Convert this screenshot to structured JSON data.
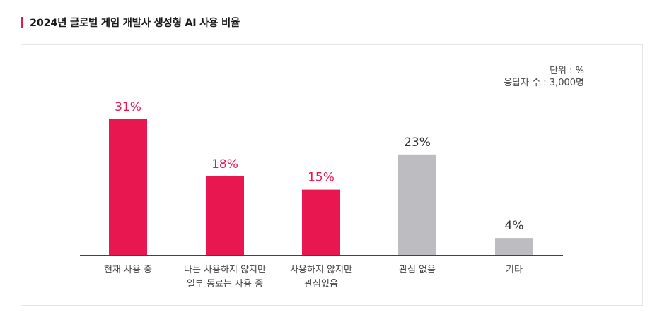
{
  "header": {
    "title": "2024년 글로벌 게임 개발사 생성형 AI 사용 비율"
  },
  "meta": {
    "unit": "단위 : %",
    "respondents": "응답자 수 : 3,000명"
  },
  "colors": {
    "accent": "#e8174f",
    "gray": "#bdbcc0",
    "axis": "#6b2a57",
    "value_gray": "#333333"
  },
  "chart_data": {
    "type": "bar",
    "title": "2024년 글로벌 게임 개발사 생성형 AI 사용 비율",
    "categories": [
      [
        "현재 사용 중"
      ],
      [
        "나는 사용하지 않지만",
        "일부 동료는 사용 중"
      ],
      [
        "사용하지 않지만",
        "관심있음"
      ],
      [
        "관심 없음"
      ],
      [
        "기타"
      ]
    ],
    "values": [
      31,
      18,
      15,
      23,
      4
    ],
    "value_labels": [
      "31%",
      "18%",
      "15%",
      "23%",
      "4%"
    ],
    "bar_colors": [
      "accent",
      "accent",
      "accent",
      "gray",
      "gray"
    ],
    "ylim": [
      0,
      35
    ],
    "grid": false,
    "legend": "none"
  }
}
